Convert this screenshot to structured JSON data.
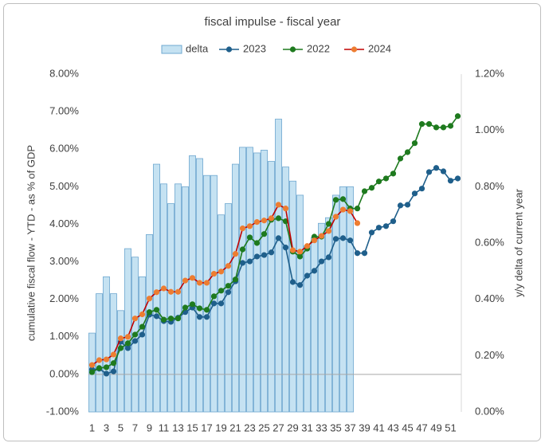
{
  "chart_data": {
    "type": "bar-line",
    "title": "fiscal impulse - fiscal year",
    "y_label": "cumulative fiscal flow - YTD - as % of GDP",
    "y2_label": "y/y delta of current year",
    "categories": [
      1,
      null,
      3,
      null,
      5,
      null,
      7,
      null,
      9,
      null,
      11,
      null,
      13,
      null,
      15,
      null,
      17,
      null,
      19,
      null,
      21,
      null,
      23,
      null,
      25,
      null,
      27,
      null,
      29,
      null,
      31,
      null,
      33,
      null,
      35,
      null,
      37,
      null,
      39,
      null,
      41,
      null,
      43,
      null,
      45,
      null,
      47,
      null,
      49,
      null,
      51,
      null
    ],
    "ylim": [
      -1,
      8
    ],
    "yticks": [
      {
        "value": -1,
        "label": "-1.00%"
      },
      {
        "value": 0,
        "label": "0.00%"
      },
      {
        "value": 1,
        "label": "1.00%"
      },
      {
        "value": 2,
        "label": "2.00%"
      },
      {
        "value": 3,
        "label": "3.00%"
      },
      {
        "value": 4,
        "label": "4.00%"
      },
      {
        "value": 5,
        "label": "5.00%"
      },
      {
        "value": 6,
        "label": "6.00%"
      },
      {
        "value": 7,
        "label": "7.00%"
      },
      {
        "value": 8,
        "label": "8.00%"
      }
    ],
    "y2lim": [
      0,
      1.2
    ],
    "y2ticks": [
      {
        "value": 0,
        "label": "0.00%"
      },
      {
        "value": 0.2,
        "label": "0.20%"
      },
      {
        "value": 0.4,
        "label": "0.40%"
      },
      {
        "value": 0.6,
        "label": "0.60%"
      },
      {
        "value": 0.8,
        "label": "0.80%"
      },
      {
        "value": 1.0,
        "label": "1.00%"
      },
      {
        "value": 1.2,
        "label": "1.20%"
      }
    ],
    "series": [
      {
        "name": "delta",
        "type": "bar",
        "axis": "y2",
        "color": "#c5e2f2",
        "edge_color": "#6fa8d0",
        "values": [
          0.28,
          0.42,
          0.48,
          0.42,
          0.36,
          0.58,
          0.55,
          0.48,
          0.63,
          0.88,
          0.81,
          0.74,
          0.81,
          0.8,
          0.91,
          0.9,
          0.84,
          0.84,
          0.7,
          0.74,
          0.88,
          0.94,
          0.94,
          0.92,
          0.93,
          0.89,
          1.04,
          0.87,
          0.82,
          0.77,
          0.59,
          0.62,
          0.67,
          0.69,
          0.77,
          0.8,
          0.8,
          null,
          null,
          null,
          null,
          null,
          null,
          null,
          null,
          null,
          null,
          null,
          null,
          null,
          null,
          null
        ]
      },
      {
        "name": "2023",
        "type": "line",
        "color": "#1f5f8b",
        "marker_color": "#1f5f8b",
        "values": [
          0.13,
          0.15,
          0.02,
          0.08,
          0.87,
          0.7,
          0.89,
          1.06,
          1.59,
          1.55,
          1.42,
          1.4,
          1.51,
          1.66,
          1.78,
          1.53,
          1.53,
          1.89,
          1.89,
          2.19,
          2.48,
          2.97,
          3.01,
          3.14,
          3.18,
          3.25,
          3.63,
          3.38,
          2.46,
          2.38,
          2.63,
          2.76,
          3.01,
          3.12,
          3.61,
          3.63,
          3.57,
          3.23,
          3.23,
          3.78,
          3.91,
          3.95,
          4.08,
          4.5,
          4.52,
          4.82,
          4.95,
          5.39,
          5.5,
          5.41,
          5.16,
          5.22
        ]
      },
      {
        "name": "2022",
        "type": "line",
        "color": "#1e7a1e",
        "marker_color": "#1e7a1e",
        "values": [
          0.06,
          0.17,
          0.19,
          0.3,
          0.7,
          0.83,
          1.06,
          1.27,
          1.66,
          1.72,
          1.46,
          1.49,
          1.49,
          1.78,
          1.87,
          1.76,
          1.72,
          2.08,
          2.23,
          2.36,
          2.53,
          3.33,
          3.65,
          3.5,
          3.74,
          4.12,
          4.16,
          4.08,
          3.27,
          3.14,
          3.35,
          3.67,
          3.67,
          4.01,
          4.65,
          4.67,
          4.42,
          4.42,
          4.88,
          4.97,
          5.14,
          5.22,
          5.35,
          5.75,
          5.92,
          6.16,
          6.67,
          6.67,
          6.58,
          6.58,
          6.62,
          6.88
        ]
      },
      {
        "name": "2024",
        "type": "line",
        "color": "#c00000",
        "marker_color": "#ed7d31",
        "values": [
          0.25,
          0.38,
          0.4,
          0.53,
          0.96,
          1.0,
          1.49,
          1.6,
          2.02,
          2.19,
          2.29,
          2.2,
          2.2,
          2.5,
          2.57,
          2.44,
          2.44,
          2.68,
          2.74,
          2.89,
          3.21,
          3.89,
          3.95,
          4.06,
          4.1,
          4.16,
          4.52,
          4.42,
          3.31,
          3.27,
          3.42,
          3.57,
          3.69,
          3.82,
          4.2,
          4.39,
          4.35,
          4.03,
          null,
          null,
          null,
          null,
          null,
          null,
          null,
          null,
          null,
          null,
          null,
          null,
          null,
          null
        ]
      }
    ]
  }
}
